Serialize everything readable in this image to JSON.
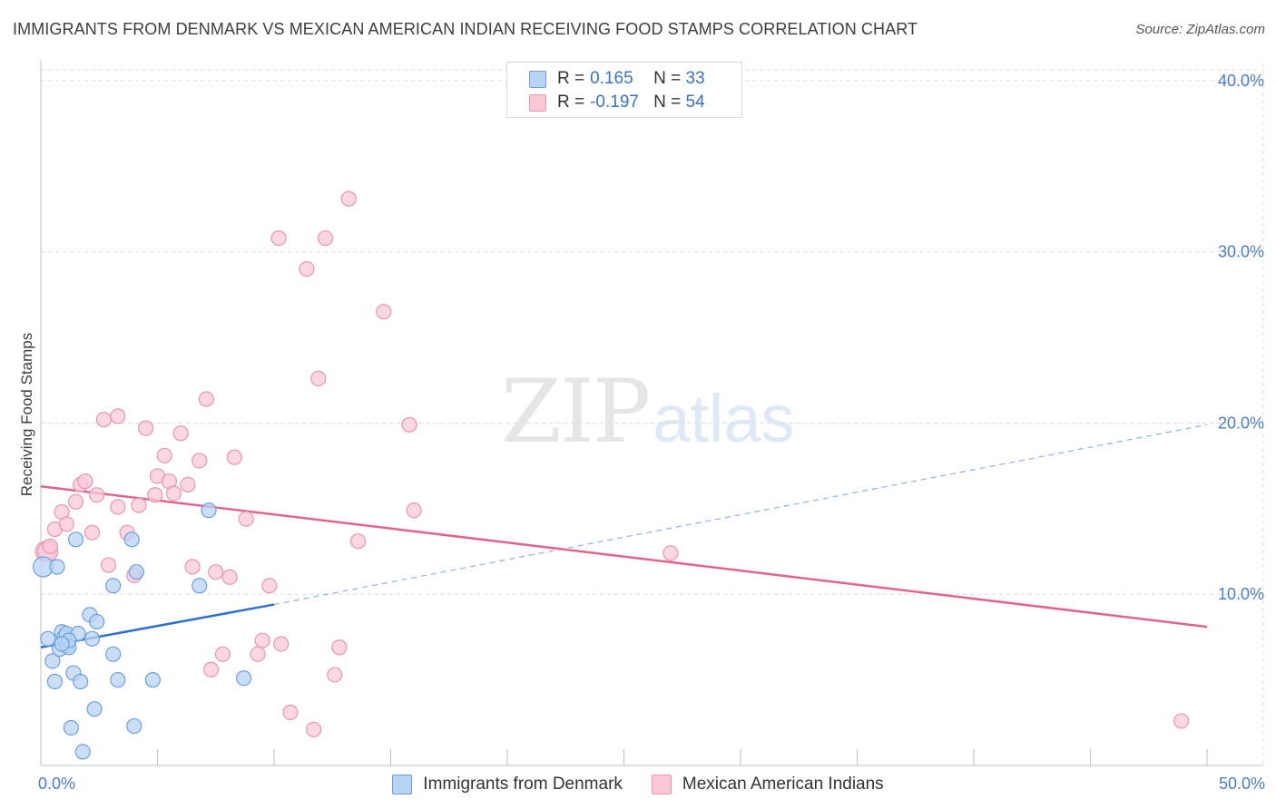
{
  "header": {
    "title": "IMMIGRANTS FROM DENMARK VS MEXICAN AMERICAN INDIAN RECEIVING FOOD STAMPS CORRELATION CHART",
    "source": "Source: ZipAtlas.com"
  },
  "watermark": {
    "zip": "ZIP",
    "atlas": "atlas"
  },
  "legend_top": {
    "rows": [
      {
        "r_label": "R =",
        "r_value": "0.165",
        "n_label": "N =",
        "n_value": "33"
      },
      {
        "r_label": "R =",
        "r_value": "-0.197",
        "n_label": "N =",
        "n_value": "54"
      }
    ]
  },
  "colors": {
    "blue_fill": "#b8d4f4",
    "blue_stroke": "#6e9fdc",
    "blue_line": "#2f6fcd",
    "pink_fill": "#fbc8d8",
    "pink_stroke": "#e896b0",
    "pink_line": "#e0648e",
    "tick_text": "#4a7ccf",
    "grid": "#dddddd"
  },
  "chart_data": {
    "type": "scatter",
    "title": "IMMIGRANTS FROM DENMARK VS MEXICAN AMERICAN INDIAN RECEIVING FOOD STAMPS CORRELATION CHART",
    "xlabel": "",
    "ylabel": "Receiving Food Stamps",
    "xlim": [
      0,
      50
    ],
    "ylim": [
      0,
      41
    ],
    "x_tick_labels": [
      "0.0%",
      "50.0%"
    ],
    "y_ticks": [
      10,
      20,
      30,
      40
    ],
    "y_tick_labels": [
      "10.0%",
      "20.0%",
      "30.0%",
      "40.0%"
    ],
    "grid": true,
    "legend_position": "bottom",
    "series": [
      {
        "name": "Immigrants from Denmark",
        "color": "#b8d4f4",
        "r": 0.165,
        "n": 33,
        "points": [
          [
            0.1,
            11.6
          ],
          [
            0.3,
            7.4
          ],
          [
            0.5,
            6.1
          ],
          [
            0.6,
            4.9
          ],
          [
            0.7,
            11.6
          ],
          [
            0.8,
            6.8
          ],
          [
            0.9,
            7.8
          ],
          [
            1.0,
            7.5
          ],
          [
            1.1,
            7.7
          ],
          [
            1.1,
            7.0
          ],
          [
            1.2,
            6.9
          ],
          [
            1.3,
            2.2
          ],
          [
            1.4,
            5.4
          ],
          [
            1.5,
            13.2
          ],
          [
            1.6,
            7.7
          ],
          [
            1.7,
            4.9
          ],
          [
            1.8,
            0.8
          ],
          [
            2.1,
            8.8
          ],
          [
            2.2,
            7.4
          ],
          [
            2.3,
            3.3
          ],
          [
            2.4,
            8.4
          ],
          [
            3.1,
            6.5
          ],
          [
            3.1,
            10.5
          ],
          [
            3.3,
            5.0
          ],
          [
            3.9,
            13.2
          ],
          [
            4.0,
            2.3
          ],
          [
            4.1,
            11.3
          ],
          [
            4.8,
            5.0
          ],
          [
            6.8,
            10.5
          ],
          [
            7.2,
            14.9
          ],
          [
            8.7,
            5.1
          ],
          [
            1.2,
            7.3
          ],
          [
            0.9,
            7.1
          ]
        ],
        "trend": {
          "x": [
            0,
            10
          ],
          "y": [
            6.9,
            9.4
          ]
        },
        "trend_extension": {
          "x": [
            10,
            50
          ],
          "y": [
            9.4,
            19.9
          ]
        }
      },
      {
        "name": "Mexican American Indians",
        "color": "#fbc8d8",
        "r": -0.197,
        "n": 54,
        "points": [
          [
            0.2,
            12.5
          ],
          [
            0.3,
            12.5
          ],
          [
            0.4,
            12.8
          ],
          [
            0.6,
            13.8
          ],
          [
            0.9,
            14.8
          ],
          [
            1.1,
            14.1
          ],
          [
            1.5,
            15.4
          ],
          [
            1.7,
            16.4
          ],
          [
            1.9,
            16.6
          ],
          [
            2.2,
            13.6
          ],
          [
            2.4,
            15.8
          ],
          [
            2.7,
            20.2
          ],
          [
            2.9,
            11.7
          ],
          [
            3.3,
            20.4
          ],
          [
            3.3,
            15.1
          ],
          [
            3.7,
            13.6
          ],
          [
            4.0,
            11.1
          ],
          [
            4.2,
            15.2
          ],
          [
            4.5,
            19.7
          ],
          [
            4.9,
            15.8
          ],
          [
            5.0,
            16.9
          ],
          [
            5.3,
            18.1
          ],
          [
            5.5,
            16.6
          ],
          [
            5.7,
            15.9
          ],
          [
            6.0,
            19.4
          ],
          [
            6.3,
            16.4
          ],
          [
            6.5,
            11.6
          ],
          [
            6.8,
            17.8
          ],
          [
            7.1,
            21.4
          ],
          [
            7.5,
            11.3
          ],
          [
            7.8,
            6.5
          ],
          [
            7.3,
            5.6
          ],
          [
            8.1,
            11.0
          ],
          [
            8.3,
            18.0
          ],
          [
            8.8,
            14.4
          ],
          [
            9.3,
            6.5
          ],
          [
            9.5,
            7.3
          ],
          [
            9.8,
            10.5
          ],
          [
            10.2,
            30.8
          ],
          [
            10.3,
            7.1
          ],
          [
            10.7,
            3.1
          ],
          [
            11.4,
            29.0
          ],
          [
            11.7,
            2.1
          ],
          [
            11.9,
            22.6
          ],
          [
            12.2,
            30.8
          ],
          [
            12.6,
            5.3
          ],
          [
            12.8,
            6.9
          ],
          [
            13.2,
            33.1
          ],
          [
            13.6,
            13.1
          ],
          [
            14.7,
            26.5
          ],
          [
            15.8,
            19.9
          ],
          [
            16.0,
            14.9
          ],
          [
            27.0,
            12.4
          ],
          [
            48.9,
            2.6
          ]
        ],
        "trend": {
          "x": [
            0,
            50
          ],
          "y": [
            16.3,
            8.1
          ]
        }
      }
    ]
  }
}
